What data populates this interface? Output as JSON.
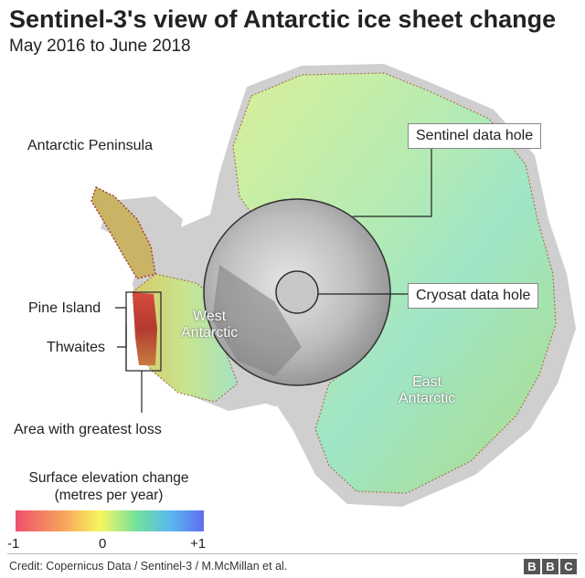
{
  "header": {
    "title": "Sentinel-3's view of Antarctic ice sheet change",
    "subtitle": "May 2016 to June 2018"
  },
  "map": {
    "labels": {
      "peninsula": "Antarctic Peninsula",
      "pine_island": "Pine Island",
      "thwaites": "Thwaites",
      "greatest_loss": "Area with greatest loss",
      "west": "West\nAntarctic",
      "east": "East\nAntarctic",
      "sentinel_hole": "Sentinel data hole",
      "cryosat_hole": "Cryosat data hole"
    }
  },
  "legend": {
    "title": "Surface elevation change\n(metres per year)",
    "min": "-1",
    "mid": "0",
    "max": "+1",
    "colors": [
      "#f0506e",
      "#f7a25c",
      "#f7f75e",
      "#6fe0a0",
      "#5ab8ee",
      "#5f6ef2"
    ]
  },
  "footer": {
    "credit": "Credit: Copernicus Data / Sentinel-3 / M.McMillan et al.",
    "logo": [
      "B",
      "B",
      "C"
    ]
  }
}
